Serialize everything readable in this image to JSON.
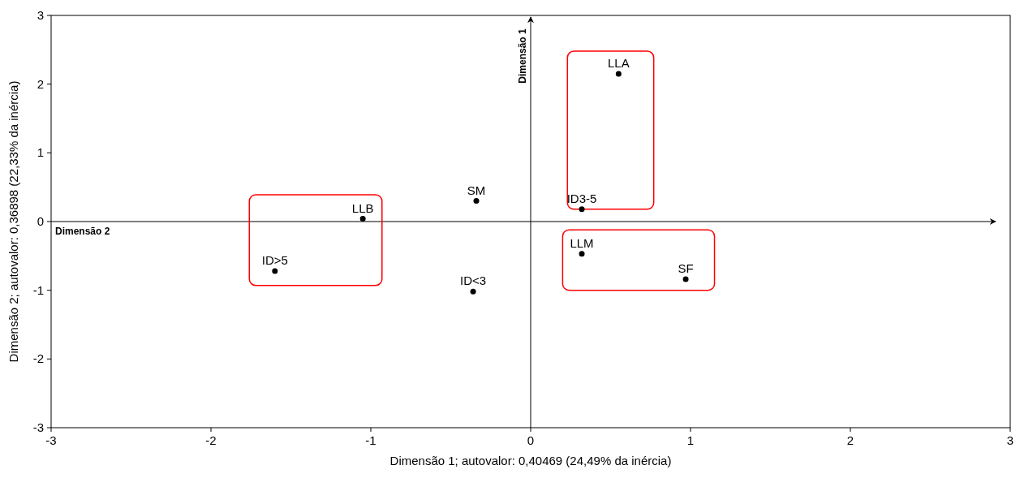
{
  "chart_data": {
    "type": "scatter",
    "xlabel": "Dimensão 1; autovalor: 0,40469 (24,49% da inércia)",
    "ylabel": "Dimensão 2; autovalor: 0,36898 (22,33% da inércia)",
    "xlim": [
      -3,
      3
    ],
    "ylim": [
      -3,
      3
    ],
    "xticks": [
      -3,
      -2,
      -1,
      0,
      1,
      2,
      3
    ],
    "yticks": [
      -3,
      -2,
      -1,
      0,
      1,
      2,
      3
    ],
    "grid": false,
    "marker": "circle",
    "ref_lines": [
      {
        "axis": "x",
        "value": 0,
        "label": "Dimensão 1",
        "color": "#000000"
      },
      {
        "axis": "y",
        "value": 0,
        "label": "Dimensão 2",
        "color": "#000000"
      }
    ],
    "series": [
      {
        "name": "LLA",
        "color": "#000000",
        "x": [
          0.55
        ],
        "values": [
          2.15
        ]
      },
      {
        "name": "ID3-5",
        "color": "#000000",
        "x": [
          0.32
        ],
        "values": [
          0.18
        ]
      },
      {
        "name": "SM",
        "color": "#000000",
        "x": [
          -0.34
        ],
        "values": [
          0.3
        ]
      },
      {
        "name": "LLB",
        "color": "#000000",
        "x": [
          -1.05
        ],
        "values": [
          0.04
        ]
      },
      {
        "name": "ID>5",
        "color": "#000000",
        "x": [
          -1.6
        ],
        "values": [
          -0.72
        ]
      },
      {
        "name": "ID<3",
        "color": "#000000",
        "x": [
          -0.36
        ],
        "values": [
          -1.02
        ]
      },
      {
        "name": "LLM",
        "color": "#000000",
        "x": [
          0.32
        ],
        "values": [
          -0.47
        ]
      },
      {
        "name": "SF",
        "color": "#000000",
        "x": [
          0.97
        ],
        "values": [
          -0.84
        ]
      }
    ]
  }
}
